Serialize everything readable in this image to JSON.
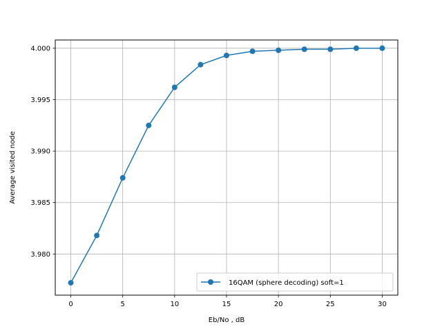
{
  "chart_data": {
    "type": "line",
    "title": "",
    "xlabel": "Eb/No , dB",
    "ylabel": "Average visited node",
    "xlim": [
      -1.5,
      31.5
    ],
    "ylim": [
      3.976,
      4.0008
    ],
    "x_ticks": [
      0,
      5,
      10,
      15,
      20,
      25,
      30
    ],
    "x_tick_labels": [
      "0",
      "5",
      "10",
      "15",
      "20",
      "25",
      "30"
    ],
    "y_ticks": [
      3.98,
      3.985,
      3.99,
      3.995,
      4.0
    ],
    "y_tick_labels": [
      "3.980",
      "3.985",
      "3.990",
      "3.995",
      "4.000"
    ],
    "grid": true,
    "legend_position": "lower-right",
    "series": [
      {
        "name": "16QAM (sphere decoding) soft=1",
        "color": "#1f77b4",
        "marker": "circle",
        "x": [
          0,
          2.5,
          5,
          7.5,
          10,
          12.5,
          15,
          17.5,
          20,
          22.5,
          25,
          27.5,
          30
        ],
        "y": [
          3.9772,
          3.9818,
          3.9874,
          3.9925,
          3.9962,
          3.9984,
          3.9993,
          3.9997,
          3.9998,
          3.9999,
          3.9999,
          4.0,
          4.0
        ]
      }
    ]
  }
}
